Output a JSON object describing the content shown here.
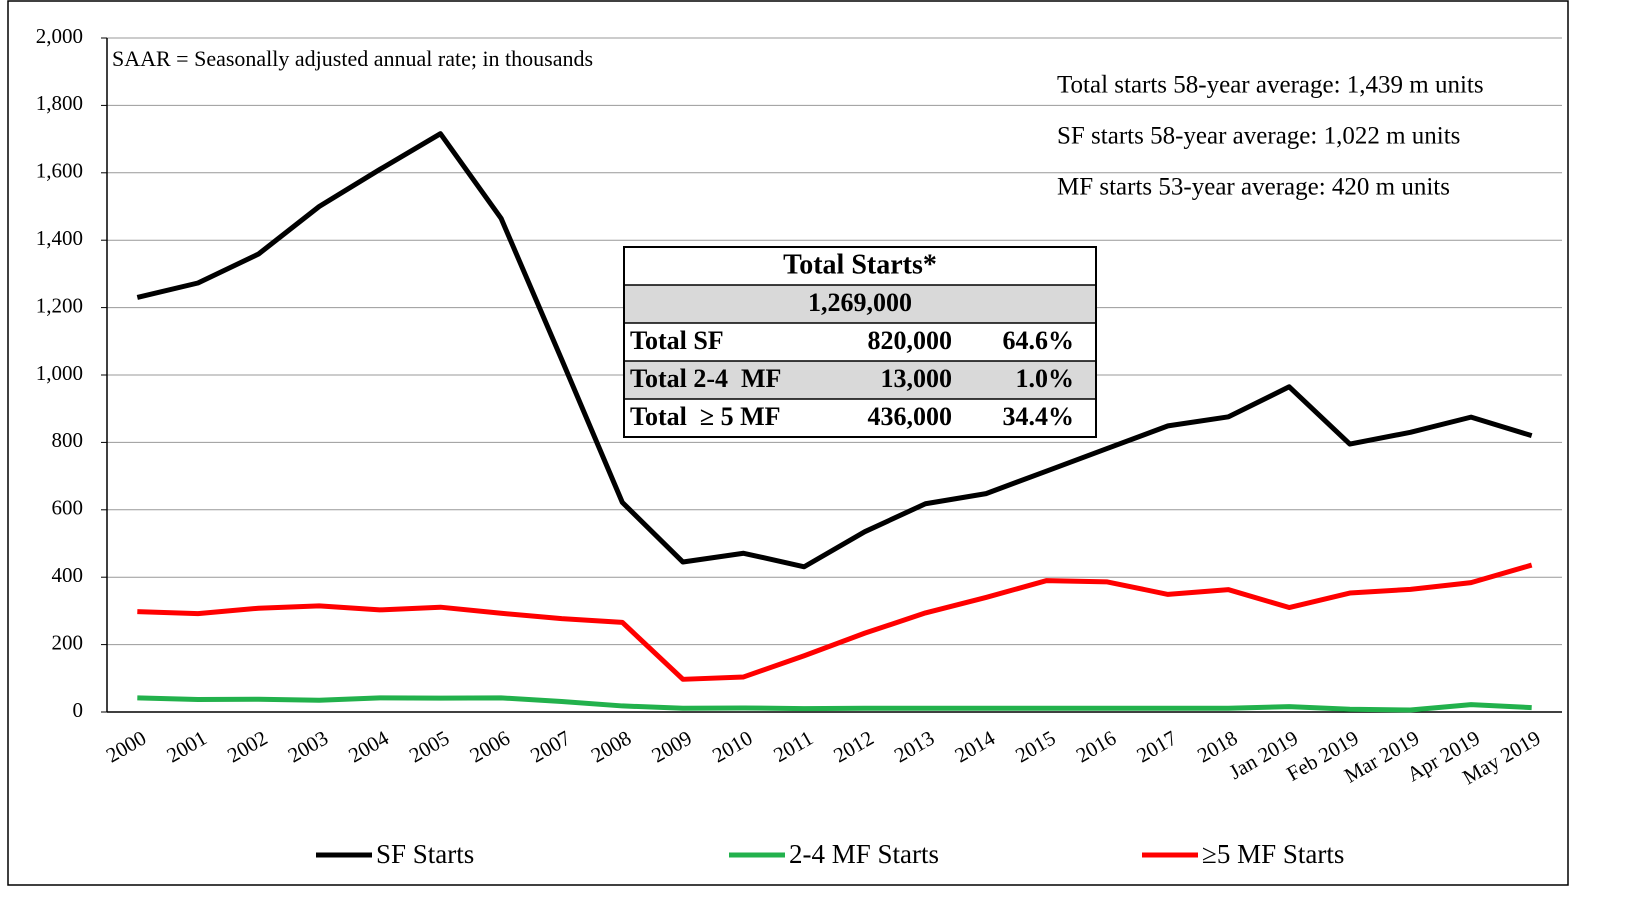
{
  "chart_data": {
    "type": "line",
    "annotations": [
      "SAAR = Seasonally adjusted annual rate; in thousands",
      "Total starts 58-year average: 1,439 m units",
      "SF starts 58-year average: 1,022 m units",
      "MF starts 53-year average: 420 m units"
    ],
    "categories": [
      "2000",
      "2001",
      "2002",
      "2003",
      "2004",
      "2005",
      "2006",
      "2007",
      "2008",
      "2009",
      "2010",
      "2011",
      "2012",
      "2013",
      "2014",
      "2015",
      "2016",
      "2017",
      "2018",
      "Jan 2019",
      "Feb 2019",
      "Mar 2019",
      "Apr 2019",
      "May 2019"
    ],
    "series": [
      {
        "name": "SF Starts",
        "color": "#000000",
        "values": [
          1230,
          1273,
          1359,
          1500,
          1610,
          1716,
          1465,
          1046,
          622,
          445,
          471,
          431,
          535,
          618,
          648,
          715,
          782,
          849,
          876,
          965,
          795,
          830,
          875,
          820
        ]
      },
      {
        "name": "2-4 MF Starts",
        "color": "#22b14c",
        "values": [
          42,
          37,
          38,
          35,
          42,
          41,
          42,
          31,
          18,
          11,
          12,
          10,
          11,
          11,
          11,
          11,
          11,
          11,
          11,
          16,
          8,
          6,
          22,
          13
        ]
      },
      {
        "name": "≥5 MF Starts",
        "color": "#ff0000",
        "values": [
          298,
          292,
          308,
          315,
          303,
          311,
          293,
          277,
          266,
          97,
          104,
          167,
          234,
          294,
          340,
          390,
          386,
          349,
          363,
          310,
          353,
          364,
          384,
          436
        ]
      }
    ],
    "ylim": [
      0,
      2000
    ],
    "yticks": [
      0,
      200,
      400,
      600,
      800,
      {
        "value": 1000,
        "label": "1,000"
      },
      {
        "value": 1200,
        "label": "1,200"
      },
      {
        "value": 1400,
        "label": "1,400"
      },
      {
        "value": 1600,
        "label": "1,600"
      },
      {
        "value": 1800,
        "label": "1,800"
      },
      {
        "value": 2000,
        "label": "2,000"
      }
    ],
    "grid": true,
    "legend": "bottom",
    "summary_table": {
      "title": "Total Starts*",
      "total": "1,269,000",
      "rows": [
        [
          "Total SF",
          "820,000",
          "64.6%"
        ],
        [
          "Total 2-4  MF",
          "13,000",
          "1.0%"
        ],
        [
          "Total  ≥ 5 MF",
          "436,000",
          "34.4%"
        ]
      ]
    }
  }
}
